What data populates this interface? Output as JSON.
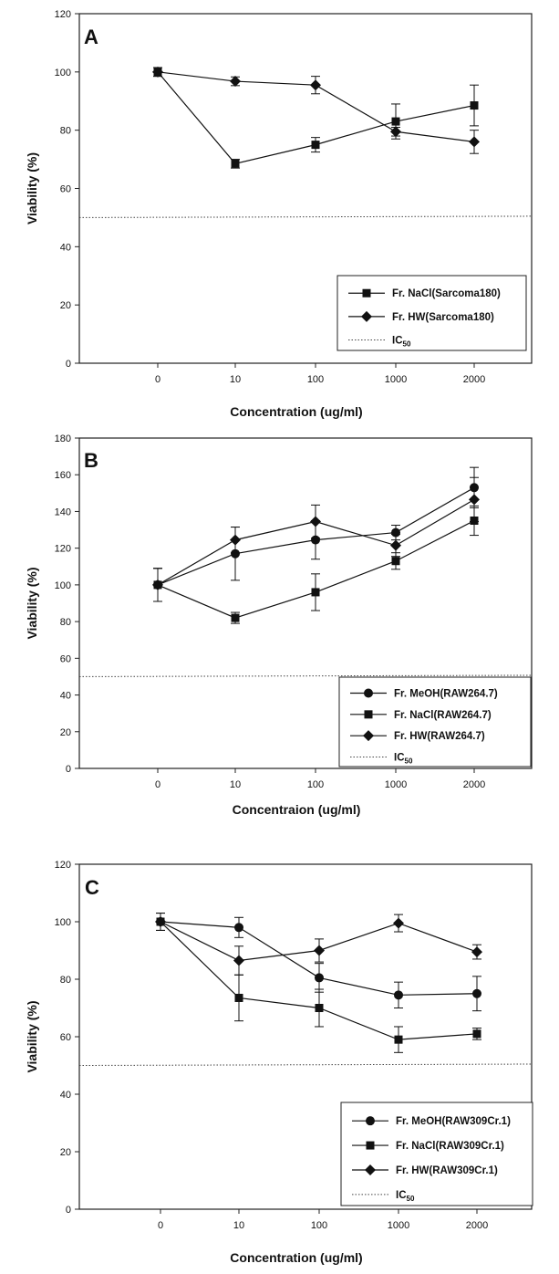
{
  "chart_data": [
    {
      "type": "line",
      "panel_label": "A",
      "categories": [
        "0",
        "10",
        "100",
        "1000",
        "2000"
      ],
      "xlabel": "Concentration (ug/ml)",
      "ylabel": "Viability (%)",
      "ylim": [
        0,
        120
      ],
      "yticks": [
        0,
        20,
        40,
        60,
        80,
        100,
        120
      ],
      "ic50": 50,
      "ic50_label": "IC",
      "ic50_sub": "50",
      "legend_position": "bottom-right",
      "series": [
        {
          "name": "Fr. NaCl(Sarcoma180)",
          "marker": "square",
          "values": [
            100,
            68.5,
            75,
            83,
            88.5
          ],
          "errors": [
            1.5,
            1.5,
            2.5,
            6,
            7
          ]
        },
        {
          "name": "Fr. HW(Sarcoma180)",
          "marker": "diamond",
          "values": [
            100,
            96.8,
            95.5,
            79.5,
            76
          ],
          "errors": [
            1.5,
            1.5,
            3,
            1.5,
            4
          ]
        }
      ]
    },
    {
      "type": "line",
      "panel_label": "B",
      "categories": [
        "0",
        "10",
        "100",
        "1000",
        "2000"
      ],
      "xlabel": "Concentraion (ug/ml)",
      "ylabel": "Viability (%)",
      "ylim": [
        0,
        180
      ],
      "yticks": [
        0,
        20,
        40,
        60,
        80,
        100,
        120,
        140,
        160,
        180
      ],
      "ic50": 50,
      "ic50_label": "IC",
      "ic50_sub": "50",
      "legend_position": "bottom-right",
      "series": [
        {
          "name": "Fr. MeOH(RAW264.7)",
          "marker": "circle",
          "values": [
            100,
            117,
            124.5,
            128.5,
            153
          ],
          "errors": [
            9,
            14.5,
            10.5,
            4,
            11
          ]
        },
        {
          "name": "Fr. NaCl(RAW264.7)",
          "marker": "square",
          "values": [
            100,
            82,
            96,
            113,
            135
          ],
          "errors": [
            9,
            3,
            10,
            4.5,
            8
          ]
        },
        {
          "name": "Fr. HW(RAW264.7)",
          "marker": "diamond",
          "values": [
            100,
            124.5,
            134.5,
            121.5,
            146.5
          ],
          "errors": [
            9,
            7,
            9,
            6,
            12
          ]
        }
      ]
    },
    {
      "type": "line",
      "panel_label": "C",
      "categories": [
        "0",
        "10",
        "100",
        "1000",
        "2000"
      ],
      "xlabel": "Concentration (ug/ml)",
      "ylabel": "Viability (%)",
      "ylim": [
        0,
        120
      ],
      "yticks": [
        0,
        20,
        40,
        60,
        80,
        100,
        120
      ],
      "ic50": 50,
      "ic50_label": "IC",
      "ic50_sub": "50",
      "legend_position": "bottom-right",
      "series": [
        {
          "name": "Fr. MeOH(RAW309Cr.1)",
          "marker": "circle",
          "values": [
            100,
            98,
            80.5,
            74.5,
            75
          ],
          "errors": [
            3,
            3.5,
            5,
            4.5,
            6
          ]
        },
        {
          "name": "Fr. NaCl(RAW309Cr.1)",
          "marker": "square",
          "values": [
            100,
            73.5,
            70,
            59,
            61
          ],
          "errors": [
            3,
            8,
            6.5,
            4.5,
            2
          ]
        },
        {
          "name": "Fr. HW(RAW309Cr.1)",
          "marker": "diamond",
          "values": [
            100,
            86.5,
            90,
            99.5,
            89.5
          ],
          "errors": [
            3,
            5,
            4,
            3,
            2.5
          ]
        }
      ]
    }
  ]
}
